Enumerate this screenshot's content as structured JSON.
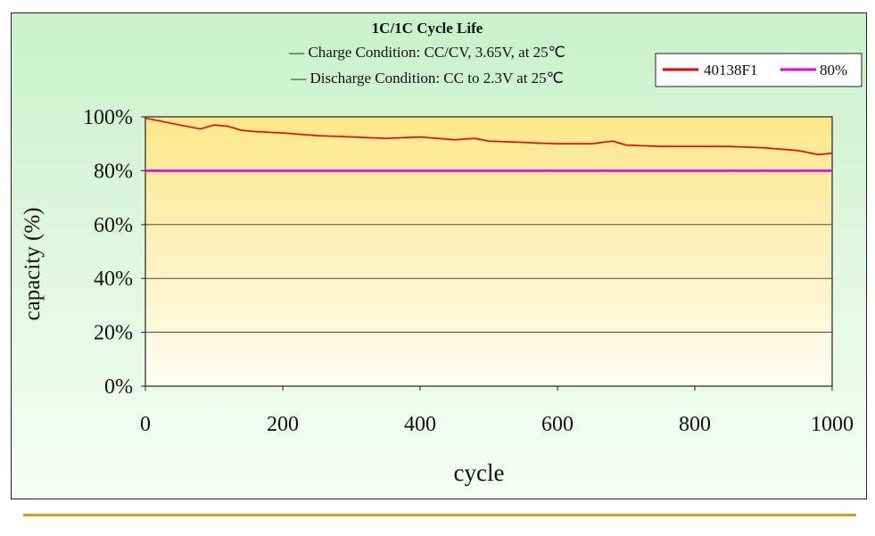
{
  "chart_data": {
    "type": "line",
    "title": "1C/1C  Cycle Life",
    "subtitle_lines": [
      "— Charge Condition: CC/CV, 3.65V, at 25℃",
      "— Discharge Condition: CC to 2.3V at 25℃"
    ],
    "xlabel": "cycle",
    "ylabel": "capacity (%)",
    "xlim": [
      0,
      1000
    ],
    "ylim": [
      0,
      100
    ],
    "x_ticks": [
      0,
      200,
      400,
      600,
      800,
      1000
    ],
    "y_ticks": [
      0,
      20,
      40,
      60,
      80,
      100
    ],
    "y_tick_labels": [
      "0%",
      "20%",
      "40%",
      "60%",
      "80%",
      "100%"
    ],
    "grid": "horizontal",
    "legend_position": "top-right",
    "series": [
      {
        "name": "40138F1",
        "color": "#ee0000",
        "x": [
          0,
          20,
          40,
          60,
          80,
          100,
          120,
          140,
          160,
          200,
          250,
          300,
          350,
          400,
          450,
          480,
          500,
          550,
          600,
          650,
          680,
          700,
          750,
          800,
          850,
          900,
          950,
          980,
          1000
        ],
        "y": [
          99.5,
          98.5,
          97.5,
          96.5,
          95.5,
          97,
          96.5,
          95,
          94.5,
          94,
          93,
          92.5,
          92,
          92.5,
          91.5,
          92,
          91,
          90.5,
          90,
          90,
          91,
          89.5,
          89,
          89,
          89,
          88.5,
          87.5,
          86,
          86.5
        ]
      },
      {
        "name": "80%",
        "color": "#e600e6",
        "x": [
          0,
          1000
        ],
        "y": [
          80,
          80
        ]
      }
    ]
  }
}
